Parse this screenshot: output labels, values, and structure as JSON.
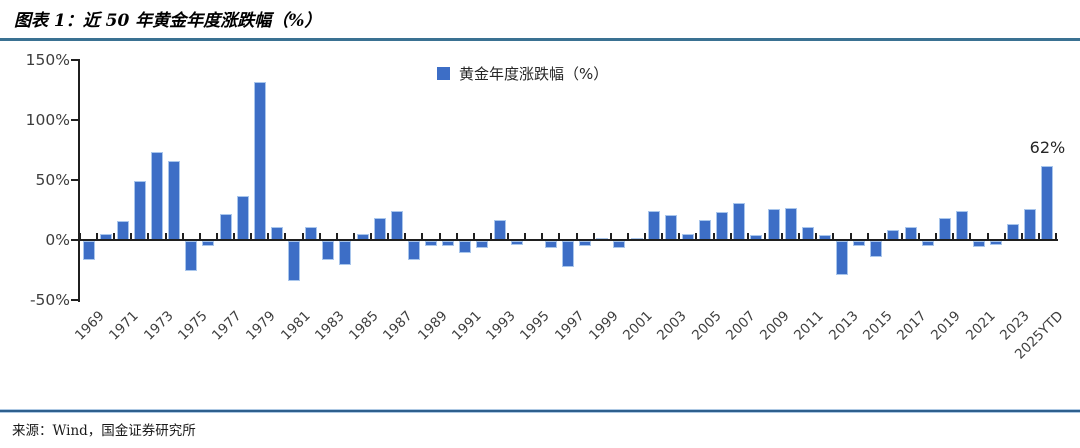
{
  "header": {
    "title": "图表 1：近 50 年黄金年度涨跌幅（%）"
  },
  "footer": {
    "source": "来源：Wind，国金证券研究所"
  },
  "chart_data": {
    "type": "bar",
    "title": "近 50 年黄金年度涨跌幅（%）",
    "series_name": "黄金年度涨跌幅（%）",
    "legend_position": "top-center",
    "grid": false,
    "bar_color": "#3D6EC6",
    "ylim": [
      -50,
      150
    ],
    "yticks": [
      {
        "value": 150,
        "label": "150%"
      },
      {
        "value": 100,
        "label": "100%"
      },
      {
        "value": 50,
        "label": "50%"
      },
      {
        "value": 0,
        "label": "0%"
      },
      {
        "value": -50,
        "label": "-50%"
      }
    ],
    "x_label_every": 2,
    "categories": [
      "1969",
      "1970",
      "1971",
      "1972",
      "1973",
      "1974",
      "1975",
      "1976",
      "1977",
      "1978",
      "1979",
      "1980",
      "1981",
      "1982",
      "1983",
      "1984",
      "1985",
      "1986",
      "1987",
      "1988",
      "1989",
      "1990",
      "1991",
      "1992",
      "1993",
      "1994",
      "1995",
      "1996",
      "1997",
      "1998",
      "1999",
      "2000",
      "2001",
      "2002",
      "2003",
      "2004",
      "2005",
      "2006",
      "2007",
      "2008",
      "2009",
      "2010",
      "2011",
      "2012",
      "2013",
      "2014",
      "2015",
      "2016",
      "2017",
      "2018",
      "2019",
      "2020",
      "2021",
      "2022",
      "2023",
      "2024",
      "2025YTD"
    ],
    "values": [
      -16,
      5,
      16,
      49,
      73,
      66,
      -25,
      -4,
      22,
      37,
      132,
      11,
      -33,
      11,
      -16,
      -20,
      5,
      18,
      24,
      -16,
      -4,
      -4,
      -10,
      -6,
      17,
      -3,
      1,
      -6,
      -22,
      -4,
      2,
      -6,
      2,
      24,
      21,
      5,
      17,
      23,
      31,
      4,
      26,
      27,
      11,
      4,
      -28,
      -4,
      -13,
      8,
      11,
      -4,
      18,
      24,
      -5,
      -3,
      13,
      26,
      62
    ],
    "annotations": [
      {
        "category": "2025YTD",
        "text": "62%"
      }
    ]
  }
}
